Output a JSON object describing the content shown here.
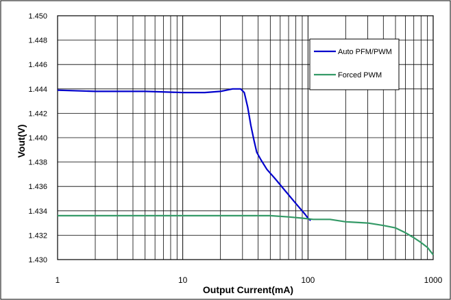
{
  "chart_data": {
    "type": "line",
    "title": "",
    "xlabel": "Output Current(mA)",
    "ylabel": "Vout(V)",
    "x_scale": "log",
    "xlim": [
      1,
      1000
    ],
    "ylim": [
      1.43,
      1.45
    ],
    "x_ticks": [
      "1",
      "10",
      "100",
      "1000"
    ],
    "y_ticks": [
      "1.430",
      "1.432",
      "1.434",
      "1.436",
      "1.438",
      "1.440",
      "1.442",
      "1.444",
      "1.446",
      "1.448",
      "1.450"
    ],
    "grid": true,
    "legend_position": "top-right",
    "series": [
      {
        "name": "Auto PFM/PWM",
        "color": "#0000cc",
        "points": [
          [
            1,
            1.4439
          ],
          [
            2,
            1.4438
          ],
          [
            5,
            1.4438
          ],
          [
            10,
            1.4437
          ],
          [
            15,
            1.4437
          ],
          [
            20,
            1.4438
          ],
          [
            25,
            1.444
          ],
          [
            29,
            1.444
          ],
          [
            31,
            1.4437
          ],
          [
            33,
            1.4425
          ],
          [
            35,
            1.441
          ],
          [
            37,
            1.4398
          ],
          [
            39,
            1.4388
          ],
          [
            42,
            1.4382
          ],
          [
            47,
            1.4374
          ],
          [
            55,
            1.4366
          ],
          [
            65,
            1.4357
          ],
          [
            80,
            1.4346
          ],
          [
            95,
            1.4337
          ],
          [
            100,
            1.4334
          ],
          [
            105,
            1.4332
          ]
        ]
      },
      {
        "name": "Forced PWM",
        "color": "#339966",
        "points": [
          [
            1,
            1.4336
          ],
          [
            10,
            1.4336
          ],
          [
            50,
            1.4336
          ],
          [
            70,
            1.4335
          ],
          [
            90,
            1.4334
          ],
          [
            110,
            1.4333
          ],
          [
            150,
            1.4333
          ],
          [
            200,
            1.4331
          ],
          [
            300,
            1.433
          ],
          [
            400,
            1.4328
          ],
          [
            500,
            1.4326
          ],
          [
            600,
            1.4322
          ],
          [
            700,
            1.4318
          ],
          [
            800,
            1.4314
          ],
          [
            900,
            1.431
          ],
          [
            1000,
            1.4304
          ]
        ]
      }
    ]
  }
}
